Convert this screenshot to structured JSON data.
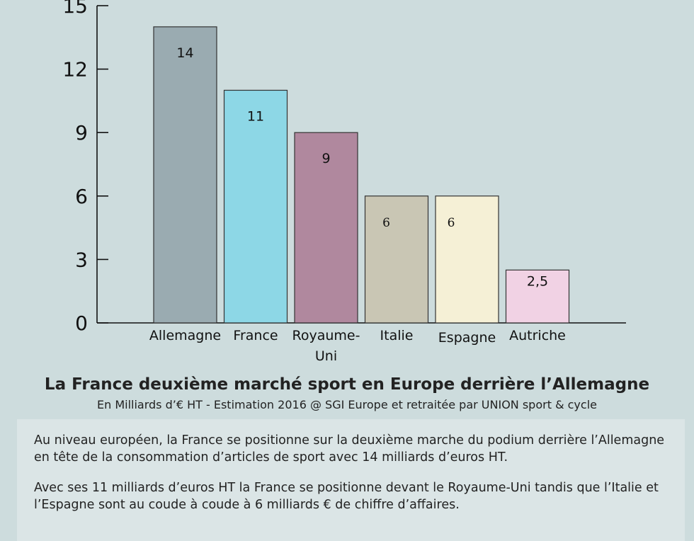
{
  "chart_data": {
    "type": "bar",
    "categories": [
      [
        "Allemagne"
      ],
      [
        "France"
      ],
      [
        "Royaume-",
        "Uni"
      ],
      [
        "Italie"
      ],
      [
        "Espagne"
      ],
      [
        "Autriche"
      ]
    ],
    "values": [
      14,
      11,
      9,
      6,
      6,
      2.5
    ],
    "value_labels": [
      "14",
      "11",
      "9",
      "6",
      "6",
      "2,5"
    ],
    "colors": [
      "#9aabb1",
      "#8dd7e6",
      "#b0889e",
      "#c9c6b4",
      "#f5f0d6",
      "#f1d2e4"
    ],
    "yticks": [
      0,
      3,
      6,
      9,
      12,
      15
    ],
    "ylim": [
      0,
      15
    ],
    "grid": false,
    "title": "La France deuxième marché sport en Europe derrière l’Allemagne",
    "subtitle": "En Milliards d’€ HT - Estimation 2016 @ SGI Europe et retraitée par UNION sport & cycle"
  },
  "text_box": {
    "paragraphs": [
      "Au niveau européen, la France se positionne sur la deuxième marche du podium derrière l’Allemagne en tête de la consommation d’articles de sport avec 14 milliards d’euros HT.",
      "Avec ses 11 milliards d’euros HT la France se positionne devant le Royaume-Uni tandis que l’Italie et l’Espagne sont au coude à coude à 6 milliards € de chiffre d’affaires."
    ]
  }
}
